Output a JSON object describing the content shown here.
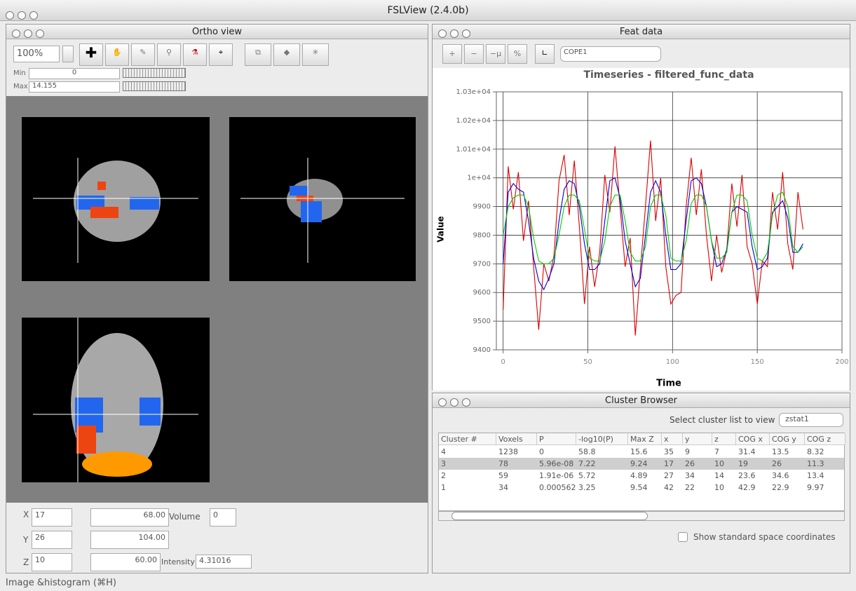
{
  "window": {
    "title": "FSLView (2.4.0b)"
  },
  "ortho": {
    "title": "Ortho view",
    "zoom": "100%",
    "min_label": "Min",
    "min": "0",
    "max_label": "Max",
    "max": "14.155",
    "coords": {
      "x_label": "X",
      "x": "17",
      "x_mm": "68.00",
      "y_label": "Y",
      "y": "26",
      "y_mm": "104.00",
      "z_label": "Z",
      "z": "10",
      "z_mm": "60.00",
      "volume_label": "Volume",
      "volume": "0",
      "intensity_label": "Intensity",
      "intensity": "4.31016"
    }
  },
  "feat": {
    "title": "Feat data",
    "buttons": [
      "+",
      "−",
      "−μ",
      "%"
    ],
    "cope": "COPE1"
  },
  "chart_data": {
    "type": "line",
    "title": "Timeseries - filtered_func_data",
    "xlabel": "Time",
    "ylabel": "Value",
    "x": [
      0,
      3,
      6,
      9,
      12,
      15,
      18,
      21,
      24,
      27,
      30,
      33,
      36,
      39,
      42,
      45,
      48,
      51,
      54,
      57,
      60,
      63,
      66,
      69,
      72,
      75,
      78,
      81,
      84,
      87,
      90,
      93,
      96,
      99,
      102,
      105,
      108,
      111,
      114,
      117,
      120,
      123,
      126,
      129,
      132,
      135,
      138,
      141,
      144,
      147,
      150,
      153,
      156,
      159,
      162,
      165,
      168,
      171,
      174,
      177
    ],
    "series": [
      {
        "color": "#dd0000",
        "values": [
          9540,
          10040,
          9890,
          10020,
          9780,
          9920,
          9690,
          9470,
          9700,
          9640,
          9730,
          9990,
          10080,
          9870,
          10060,
          9830,
          9560,
          9760,
          9620,
          9740,
          10010,
          9880,
          10110,
          9900,
          9690,
          9790,
          9450,
          9680,
          9900,
          10130,
          9850,
          10000,
          9690,
          9560,
          9590,
          9600,
          9900,
          10070,
          9870,
          10030,
          9800,
          9640,
          9800,
          9670,
          9750,
          9980,
          9830,
          10010,
          9760,
          9700,
          9560,
          9710,
          9690,
          9950,
          9820,
          10020,
          9770,
          9680,
          9950,
          9820
        ]
      },
      {
        "color": "#0000dd",
        "values": [
          9700,
          9950,
          9980,
          9960,
          9950,
          9850,
          9720,
          9640,
          9610,
          9650,
          9700,
          9850,
          9960,
          9990,
          9980,
          9900,
          9770,
          9680,
          9680,
          9700,
          9850,
          9990,
          10000,
          9930,
          9780,
          9700,
          9620,
          9650,
          9800,
          9950,
          9990,
          9950,
          9800,
          9680,
          9680,
          9700,
          9850,
          9990,
          10000,
          9980,
          9900,
          9780,
          9690,
          9700,
          9750,
          9880,
          9900,
          9890,
          9880,
          9760,
          9680,
          9690,
          9720,
          9880,
          9900,
          9920,
          9860,
          9740,
          9740,
          9770
        ]
      },
      {
        "color": "#00cc00",
        "values": [
          9800,
          9900,
          9930,
          9940,
          9940,
          9900,
          9790,
          9710,
          9700,
          9700,
          9720,
          9800,
          9900,
          9940,
          9940,
          9920,
          9820,
          9720,
          9710,
          9710,
          9780,
          9900,
          9940,
          9940,
          9850,
          9740,
          9710,
          9710,
          9760,
          9900,
          9940,
          9940,
          9870,
          9720,
          9710,
          9710,
          9780,
          9910,
          9940,
          9940,
          9900,
          9780,
          9720,
          9720,
          9740,
          9880,
          9940,
          9940,
          9920,
          9800,
          9720,
          9710,
          9740,
          9870,
          9940,
          9950,
          9900,
          9760,
          9740,
          9760
        ]
      }
    ],
    "xlim": [
      -4,
      200
    ],
    "xticks": [
      0,
      50,
      100,
      150,
      200
    ],
    "ylim": [
      9400,
      10300
    ],
    "yticks": [
      9400,
      9500,
      9600,
      9700,
      9800,
      9900,
      {
        "value": 10000,
        "label": "1e+04"
      },
      {
        "value": 10100,
        "label": "1.01e+04"
      },
      {
        "value": 10200,
        "label": "1.02e+04"
      },
      {
        "value": 10300,
        "label": "1.03e+04"
      }
    ],
    "grid": true
  },
  "cluster": {
    "title": "Cluster Browser",
    "select_label": "Select cluster list to view",
    "select": "zstat1",
    "columns": [
      "Cluster #",
      "Voxels",
      "P",
      "-log10(P)",
      "Max Z",
      "x",
      "y",
      "z",
      "COG x",
      "COG y",
      "COG z"
    ],
    "rows": [
      [
        "4",
        "1238",
        "0",
        "58.8",
        "15.6",
        "35",
        "9",
        "7",
        "31.4",
        "13.5",
        "8.32"
      ],
      [
        "3",
        "78",
        "5.96e-08",
        "7.22",
        "9.24",
        "17",
        "26",
        "10",
        "19",
        "26",
        "11.3"
      ],
      [
        "2",
        "59",
        "1.91e-06",
        "5.72",
        "4.89",
        "27",
        "34",
        "14",
        "23.6",
        "34.6",
        "13.4"
      ],
      [
        "1",
        "34",
        "0.000562",
        "3.25",
        "9.54",
        "42",
        "22",
        "10",
        "42.9",
        "22.9",
        "9.97"
      ]
    ],
    "checkbox_label": "Show standard space coordinates"
  },
  "status": "Image &histogram (⌘H)"
}
